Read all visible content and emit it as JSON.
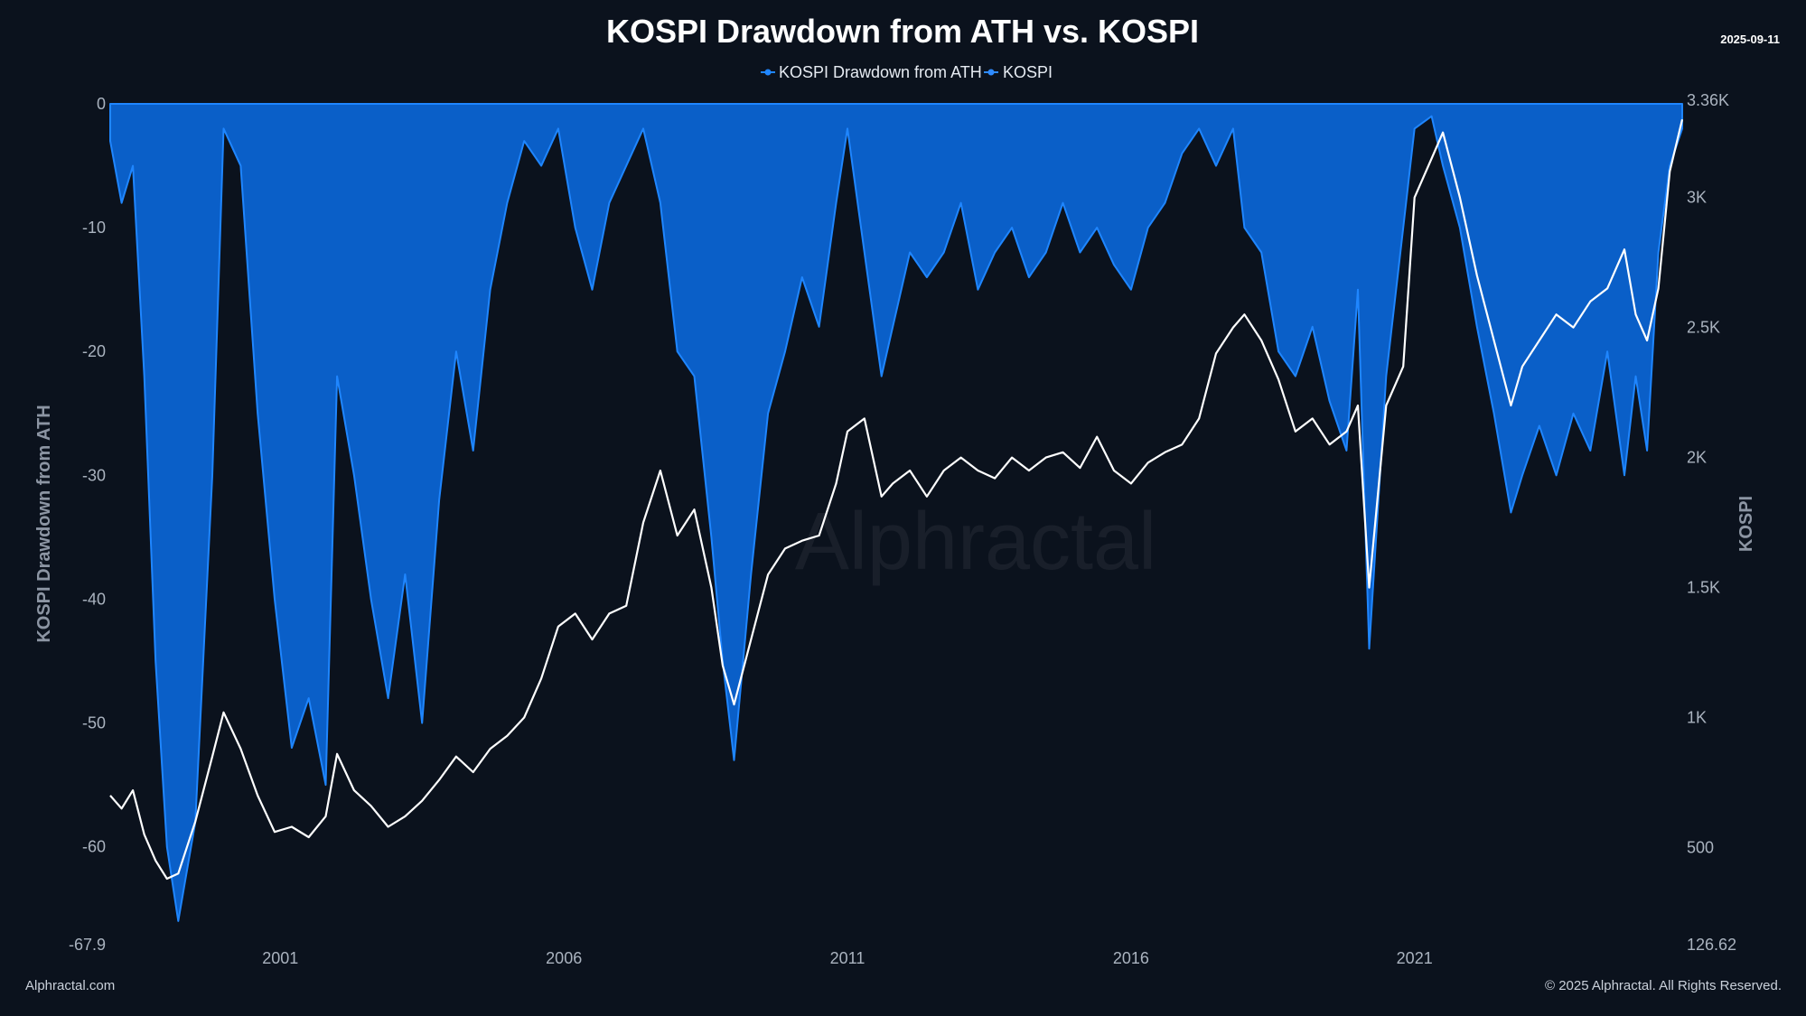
{
  "header": {
    "title": "KOSPI Drawdown from ATH vs. KOSPI",
    "date_stamp": "2025-09-11"
  },
  "footer": {
    "left": "Alphractal.com",
    "right": "© 2025 Alphractal. All Rights Reserved.",
    "watermark": "Alphractal"
  },
  "colors": {
    "background": "#0b121d",
    "drawdown_fill": "#0a5fc8",
    "drawdown_edge": "#1f86ff",
    "kospi_line": "#ffffff",
    "legend_drawdown": "#1f86ff",
    "legend_kospi": "#2f8bff"
  },
  "chart_data": {
    "type": "area",
    "title": "KOSPI Drawdown from ATH vs. KOSPI",
    "legend": {
      "placement": "top-center"
    },
    "grid": false,
    "x_range": [
      1998.0,
      2025.72
    ],
    "x_tick_values": [
      2001,
      2006,
      2011,
      2016,
      2021
    ],
    "x_tick_labels": [
      "2001",
      "2006",
      "2011",
      "2016",
      "2021"
    ],
    "y_left": {
      "label": "KOSPI Drawdown from ATH",
      "range": [
        -67.9,
        0
      ],
      "tick_values": [
        0,
        -10,
        -20,
        -30,
        -40,
        -50,
        -60,
        -67.9
      ],
      "tick_labels": [
        "0",
        "-10",
        "-20",
        "-30",
        "-40",
        "-50",
        "-60",
        "-67.9"
      ]
    },
    "y_right": {
      "label": "KOSPI",
      "range": [
        126.62,
        3360
      ],
      "tick_values": [
        3360,
        3000,
        2500,
        2000,
        1500,
        1000,
        500,
        126.62
      ],
      "tick_labels": [
        "3.36K",
        "3K",
        "2.5K",
        "2K",
        "1.5K",
        "1K",
        "500",
        "126.62"
      ]
    },
    "series": [
      {
        "name": "KOSPI Drawdown from ATH",
        "type": "area",
        "axis": "left",
        "x": [
          1998.0,
          1998.2,
          1998.4,
          1998.6,
          1998.8,
          1999.0,
          1999.2,
          1999.5,
          1999.8,
          2000.0,
          2000.3,
          2000.6,
          2000.9,
          2001.2,
          2001.5,
          2001.8,
          2002.0,
          2002.3,
          2002.6,
          2002.9,
          2003.2,
          2003.5,
          2003.8,
          2004.1,
          2004.4,
          2004.7,
          2005.0,
          2005.3,
          2005.6,
          2005.9,
          2006.2,
          2006.5,
          2006.8,
          2007.1,
          2007.4,
          2007.7,
          2008.0,
          2008.3,
          2008.6,
          2008.8,
          2009.0,
          2009.3,
          2009.6,
          2009.9,
          2010.2,
          2010.5,
          2010.8,
          2011.0,
          2011.3,
          2011.6,
          2011.8,
          2012.1,
          2012.4,
          2012.7,
          2013.0,
          2013.3,
          2013.6,
          2013.9,
          2014.2,
          2014.5,
          2014.8,
          2015.1,
          2015.4,
          2015.7,
          2016.0,
          2016.3,
          2016.6,
          2016.9,
          2017.2,
          2017.5,
          2017.8,
          2018.0,
          2018.3,
          2018.6,
          2018.9,
          2019.2,
          2019.5,
          2019.8,
          2020.0,
          2020.2,
          2020.5,
          2020.8,
          2021.0,
          2021.3,
          2021.5,
          2021.8,
          2022.1,
          2022.4,
          2022.7,
          2022.9,
          2023.2,
          2023.5,
          2023.8,
          2024.1,
          2024.4,
          2024.7,
          2024.9,
          2025.1,
          2025.3,
          2025.5,
          2025.72
        ],
        "y": [
          -3,
          -8,
          -5,
          -22,
          -45,
          -60,
          -66,
          -58,
          -30,
          -2,
          -5,
          -25,
          -40,
          -52,
          -48,
          -55,
          -22,
          -30,
          -40,
          -48,
          -38,
          -50,
          -32,
          -20,
          -28,
          -15,
          -8,
          -3,
          -5,
          -2,
          -10,
          -15,
          -8,
          -5,
          -2,
          -8,
          -20,
          -22,
          -35,
          -45,
          -53,
          -38,
          -25,
          -20,
          -14,
          -18,
          -8,
          -2,
          -12,
          -22,
          -18,
          -12,
          -14,
          -12,
          -8,
          -15,
          -12,
          -10,
          -14,
          -12,
          -8,
          -12,
          -10,
          -13,
          -15,
          -10,
          -8,
          -4,
          -2,
          -5,
          -2,
          -10,
          -12,
          -20,
          -22,
          -18,
          -24,
          -28,
          -15,
          -44,
          -22,
          -10,
          -2,
          -1,
          -5,
          -10,
          -18,
          -25,
          -33,
          -30,
          -26,
          -30,
          -25,
          -28,
          -20,
          -30,
          -22,
          -28,
          -12,
          -5,
          -2
        ]
      },
      {
        "name": "KOSPI",
        "type": "line",
        "axis": "right",
        "x": [
          1998.0,
          1998.2,
          1998.4,
          1998.6,
          1998.8,
          1999.0,
          1999.2,
          1999.5,
          1999.8,
          2000.0,
          2000.3,
          2000.6,
          2000.9,
          2001.2,
          2001.5,
          2001.8,
          2002.0,
          2002.3,
          2002.6,
          2002.9,
          2003.2,
          2003.5,
          2003.8,
          2004.1,
          2004.4,
          2004.7,
          2005.0,
          2005.3,
          2005.6,
          2005.9,
          2006.2,
          2006.5,
          2006.8,
          2007.1,
          2007.4,
          2007.7,
          2008.0,
          2008.3,
          2008.6,
          2008.8,
          2009.0,
          2009.3,
          2009.6,
          2009.9,
          2010.2,
          2010.5,
          2010.8,
          2011.0,
          2011.3,
          2011.6,
          2011.8,
          2012.1,
          2012.4,
          2012.7,
          2013.0,
          2013.3,
          2013.6,
          2013.9,
          2014.2,
          2014.5,
          2014.8,
          2015.1,
          2015.4,
          2015.7,
          2016.0,
          2016.3,
          2016.6,
          2016.9,
          2017.2,
          2017.5,
          2017.8,
          2018.0,
          2018.3,
          2018.6,
          2018.9,
          2019.2,
          2019.5,
          2019.8,
          2020.0,
          2020.2,
          2020.5,
          2020.8,
          2021.0,
          2021.3,
          2021.5,
          2021.8,
          2022.1,
          2022.4,
          2022.7,
          2022.9,
          2023.2,
          2023.5,
          2023.8,
          2024.1,
          2024.4,
          2024.7,
          2024.9,
          2025.1,
          2025.3,
          2025.5,
          2025.72
        ],
        "y": [
          700,
          650,
          720,
          550,
          450,
          380,
          400,
          600,
          850,
          1020,
          880,
          700,
          560,
          580,
          540,
          620,
          860,
          720,
          660,
          580,
          620,
          680,
          760,
          850,
          790,
          880,
          930,
          1000,
          1150,
          1350,
          1400,
          1300,
          1400,
          1430,
          1750,
          1950,
          1700,
          1800,
          1500,
          1200,
          1050,
          1300,
          1550,
          1650,
          1680,
          1700,
          1900,
          2100,
          2150,
          1850,
          1900,
          1950,
          1850,
          1950,
          2000,
          1950,
          1920,
          2000,
          1950,
          2000,
          2020,
          1960,
          2080,
          1950,
          1900,
          1980,
          2020,
          2050,
          2150,
          2400,
          2500,
          2550,
          2450,
          2300,
          2100,
          2150,
          2050,
          2100,
          2200,
          1500,
          2200,
          2350,
          3000,
          3150,
          3250,
          3000,
          2700,
          2450,
          2200,
          2350,
          2450,
          2550,
          2500,
          2600,
          2650,
          2800,
          2550,
          2450,
          2650,
          3100,
          3300
        ]
      }
    ]
  }
}
